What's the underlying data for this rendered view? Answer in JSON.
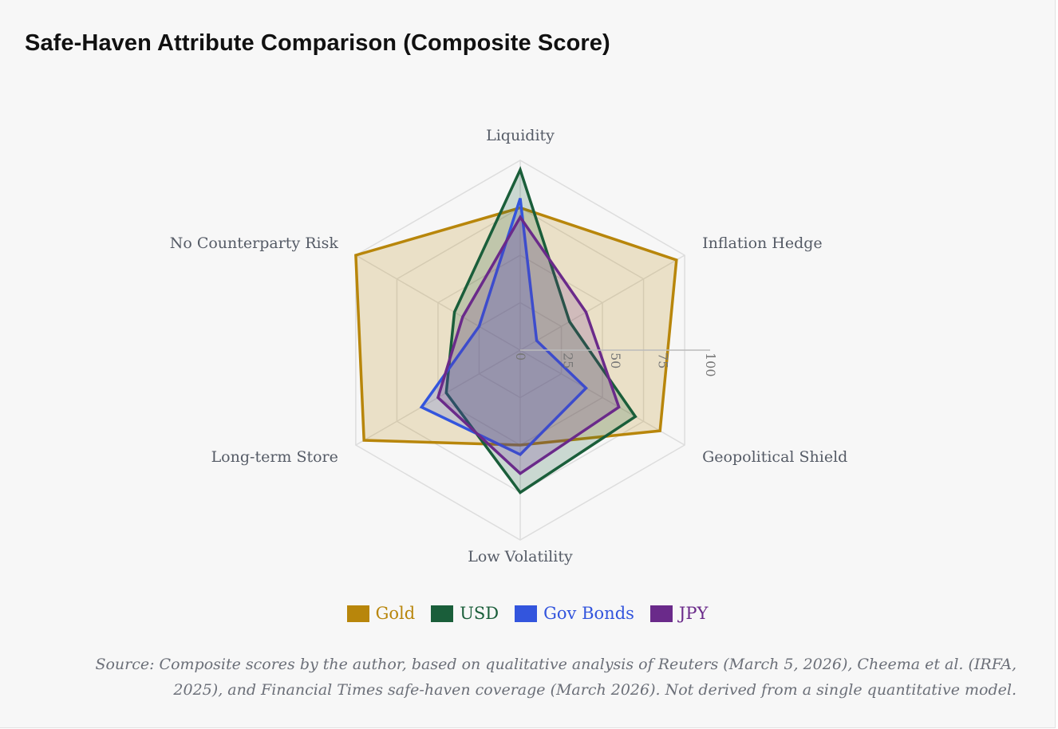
{
  "title": "Safe-Haven Attribute Comparison (Composite Score)",
  "source_note": "Source: Composite scores by the author, based on qualitative analysis of Reuters (March 5, 2026), Cheema et al. (IRFA, 2025), and Financial Times safe-haven coverage (March 2026). Not derived from a single quantitative model.",
  "chart_data": {
    "type": "radar",
    "title": "Safe-Haven Attribute Comparison (Composite Score)",
    "axes": [
      "Liquidity",
      "Inflation Hedge",
      "Geopolitical Shield",
      "Low Volatility",
      "Long-term Store",
      "No Counterparty Risk"
    ],
    "radial_range": [
      0,
      100
    ],
    "radial_ticks": [
      "0",
      "25",
      "50",
      "75",
      "100"
    ],
    "series": [
      {
        "name": "Gold",
        "color": "#b8860b",
        "values": [
          75,
          95,
          85,
          50,
          95,
          100
        ]
      },
      {
        "name": "USD",
        "color": "#1a5e3a",
        "values": [
          95,
          30,
          70,
          75,
          45,
          40
        ]
      },
      {
        "name": "Gov Bonds",
        "color": "#3355dd",
        "values": [
          80,
          10,
          40,
          55,
          60,
          25
        ]
      },
      {
        "name": "JPY",
        "color": "#6a2a8a",
        "values": [
          70,
          40,
          60,
          65,
          50,
          35
        ]
      }
    ],
    "legend_position": "bottom-center",
    "grid": true
  }
}
